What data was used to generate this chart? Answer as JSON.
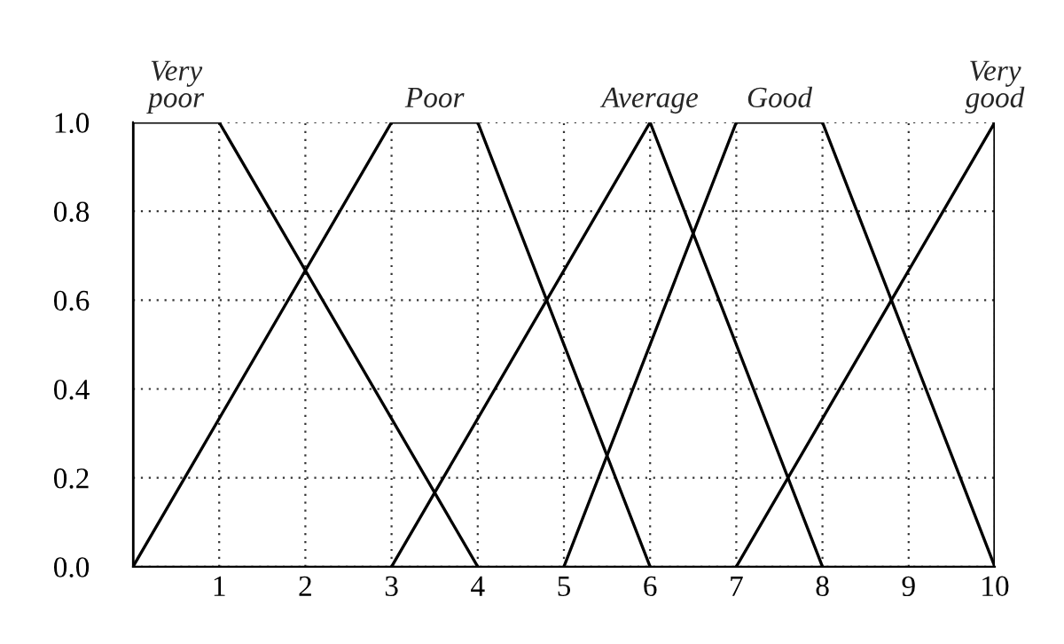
{
  "chart_data": {
    "type": "line",
    "series": [
      {
        "name": "Very\npoor",
        "color": "#000000",
        "x": [
          0,
          0,
          1,
          4
        ],
        "values": [
          0,
          1,
          1,
          0
        ]
      },
      {
        "name": "Poor",
        "color": "#000000",
        "x": [
          0,
          3,
          4,
          6
        ],
        "values": [
          0,
          1,
          1,
          0
        ]
      },
      {
        "name": "Average",
        "color": "#000000",
        "x": [
          3,
          6,
          8
        ],
        "values": [
          0,
          1,
          0
        ]
      },
      {
        "name": "Good",
        "color": "#000000",
        "x": [
          5,
          7,
          8,
          10
        ],
        "values": [
          0,
          1,
          1,
          0
        ]
      },
      {
        "name": "Very\ngood",
        "color": "#000000",
        "x": [
          7,
          10,
          10
        ],
        "values": [
          0,
          1,
          0
        ]
      }
    ],
    "xlim": [
      0,
      10
    ],
    "ylim": [
      0,
      1.0
    ],
    "xticks": [
      1,
      2,
      3,
      4,
      5,
      6,
      7,
      8,
      9,
      10
    ],
    "yticks": [
      {
        "value": 0,
        "label": "0.0"
      },
      {
        "value": 0.2,
        "label": "0.2"
      },
      {
        "value": 0.4,
        "label": "0.4"
      },
      {
        "value": 0.6,
        "label": "0.6"
      },
      {
        "value": 0.8,
        "label": "0.8"
      },
      {
        "value": 1.0,
        "label": "1.0"
      }
    ],
    "grid": true,
    "marker": "none",
    "line_style": "solid",
    "legend": false
  }
}
